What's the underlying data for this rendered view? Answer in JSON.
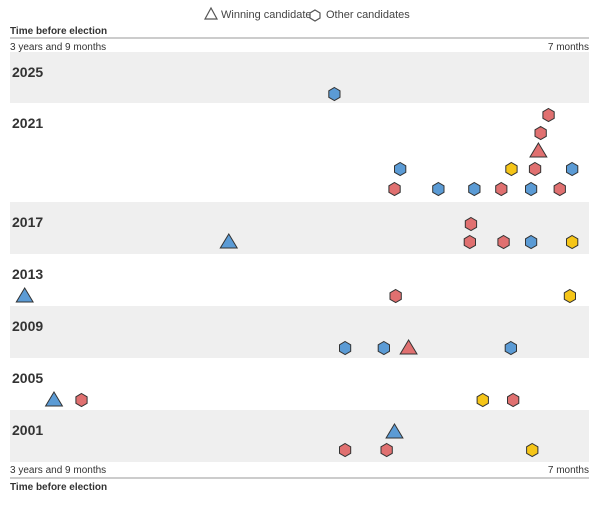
{
  "chart_data": {
    "type": "scatter",
    "legend": {
      "placement": "top-center",
      "winner_label": "Winning candidate",
      "other_label": "Other candidates"
    },
    "axis": {
      "title": "Time before election",
      "left_label": "3 years and 9 months",
      "right_label": "7 months"
    },
    "colors": {
      "blue": "#5b9bd5",
      "red": "#e07070",
      "yellow": "#f5c518",
      "band": "#efefef",
      "axis": "#999999"
    },
    "years": [
      {
        "label": "2025",
        "points": [
          {
            "x": 0.563,
            "lane": 0,
            "kind": "other",
            "color": "blue"
          }
        ]
      },
      {
        "label": "2021",
        "points": [
          {
            "x": 0.68,
            "lane": 1,
            "kind": "other",
            "color": "blue"
          },
          {
            "x": 0.67,
            "lane": 0,
            "kind": "other",
            "color": "red"
          },
          {
            "x": 0.748,
            "lane": 0,
            "kind": "other",
            "color": "blue"
          },
          {
            "x": 0.812,
            "lane": 0,
            "kind": "other",
            "color": "blue"
          },
          {
            "x": 0.86,
            "lane": 0,
            "kind": "other",
            "color": "red"
          },
          {
            "x": 0.878,
            "lane": 1,
            "kind": "other",
            "color": "yellow"
          },
          {
            "x": 0.913,
            "lane": 0,
            "kind": "other",
            "color": "blue"
          },
          {
            "x": 0.92,
            "lane": 1,
            "kind": "other",
            "color": "red"
          },
          {
            "x": 0.926,
            "lane": 2,
            "kind": "winner",
            "color": "red"
          },
          {
            "x": 0.93,
            "lane": 3,
            "kind": "other",
            "color": "red"
          },
          {
            "x": 0.944,
            "lane": 4,
            "kind": "other",
            "color": "red"
          },
          {
            "x": 0.964,
            "lane": 0,
            "kind": "other",
            "color": "red"
          },
          {
            "x": 0.986,
            "lane": 1,
            "kind": "other",
            "color": "blue"
          }
        ]
      },
      {
        "label": "2017",
        "points": [
          {
            "x": 0.375,
            "lane": 0,
            "kind": "winner",
            "color": "blue"
          },
          {
            "x": 0.804,
            "lane": 0,
            "kind": "other",
            "color": "red"
          },
          {
            "x": 0.806,
            "lane": 1,
            "kind": "other",
            "color": "red"
          },
          {
            "x": 0.864,
            "lane": 0,
            "kind": "other",
            "color": "red"
          },
          {
            "x": 0.913,
            "lane": 0,
            "kind": "other",
            "color": "blue"
          },
          {
            "x": 0.986,
            "lane": 0,
            "kind": "other",
            "color": "yellow"
          }
        ]
      },
      {
        "label": "2013",
        "points": [
          {
            "x": 0.012,
            "lane": 0,
            "kind": "winner",
            "color": "blue"
          },
          {
            "x": 0.672,
            "lane": 0,
            "kind": "other",
            "color": "red"
          },
          {
            "x": 0.982,
            "lane": 0,
            "kind": "other",
            "color": "yellow"
          }
        ]
      },
      {
        "label": "2009",
        "points": [
          {
            "x": 0.582,
            "lane": 0,
            "kind": "other",
            "color": "blue"
          },
          {
            "x": 0.651,
            "lane": 0,
            "kind": "other",
            "color": "blue"
          },
          {
            "x": 0.695,
            "lane": 0,
            "kind": "winner",
            "color": "red"
          },
          {
            "x": 0.877,
            "lane": 0,
            "kind": "other",
            "color": "blue"
          }
        ]
      },
      {
        "label": "2005",
        "points": [
          {
            "x": 0.064,
            "lane": 0,
            "kind": "winner",
            "color": "blue"
          },
          {
            "x": 0.113,
            "lane": 0,
            "kind": "other",
            "color": "red"
          },
          {
            "x": 0.827,
            "lane": 0,
            "kind": "other",
            "color": "yellow"
          },
          {
            "x": 0.881,
            "lane": 0,
            "kind": "other",
            "color": "red"
          }
        ]
      },
      {
        "label": "2001",
        "points": [
          {
            "x": 0.582,
            "lane": 0,
            "kind": "other",
            "color": "red"
          },
          {
            "x": 0.656,
            "lane": 0,
            "kind": "other",
            "color": "red"
          },
          {
            "x": 0.67,
            "lane": 1,
            "kind": "winner",
            "color": "blue"
          },
          {
            "x": 0.915,
            "lane": 0,
            "kind": "other",
            "color": "yellow"
          }
        ]
      }
    ]
  }
}
